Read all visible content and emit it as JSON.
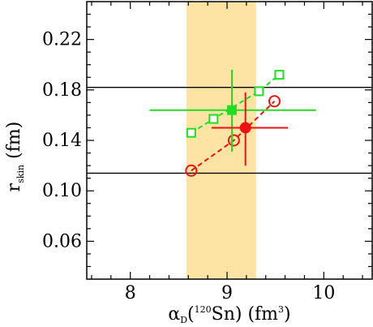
{
  "chart_data": {
    "type": "scatter",
    "title": "",
    "xlabel": {
      "alpha": "α",
      "alpha_sub": "D",
      "open": "(",
      "mass_number": "120",
      "element": "Sn) (fm",
      "power": "3",
      "close": ")"
    },
    "ylabel": {
      "r": "r",
      "r_sub": "skin",
      "unit": " (fm)"
    },
    "xlim": [
      7.55,
      10.5
    ],
    "ylim": [
      0.03,
      0.25
    ],
    "xticks": [
      8,
      9,
      10
    ],
    "xtick_labels": [
      "8",
      "9",
      "10"
    ],
    "yticks": [
      0.06,
      0.1,
      0.14,
      0.18,
      0.22
    ],
    "ytick_labels": [
      "0.06",
      "0.10",
      "0.14",
      "0.18",
      "0.22"
    ],
    "band": {
      "x_range": [
        8.58,
        9.3
      ],
      "color": "#fde3a4"
    },
    "hlines": [
      0.114,
      0.182
    ],
    "series": [
      {
        "marker": "open-square",
        "line": "dashed",
        "color": "#22dd22",
        "points": [
          [
            8.63,
            0.146
          ],
          [
            8.86,
            0.157
          ],
          [
            9.33,
            0.179
          ],
          [
            9.54,
            0.192
          ]
        ]
      },
      {
        "marker": "open-circle",
        "line": "dashed",
        "color": "#ee1111",
        "points": [
          [
            8.63,
            0.116
          ],
          [
            9.07,
            0.14
          ],
          [
            9.49,
            0.171
          ]
        ]
      },
      {
        "marker": "filled-square",
        "line": "none",
        "color": "#22dd22",
        "points": [
          [
            9.05,
            0.164
          ]
        ],
        "xerr": [
          [
            8.2,
            9.92
          ]
        ],
        "yerr": [
          [
            0.131,
            0.196
          ]
        ]
      },
      {
        "marker": "filled-circle",
        "line": "none",
        "color": "#ee1111",
        "points": [
          [
            9.19,
            0.15
          ]
        ],
        "xerr": [
          [
            8.84,
            9.63
          ]
        ],
        "yerr": [
          [
            0.12,
            0.178
          ]
        ]
      }
    ]
  }
}
